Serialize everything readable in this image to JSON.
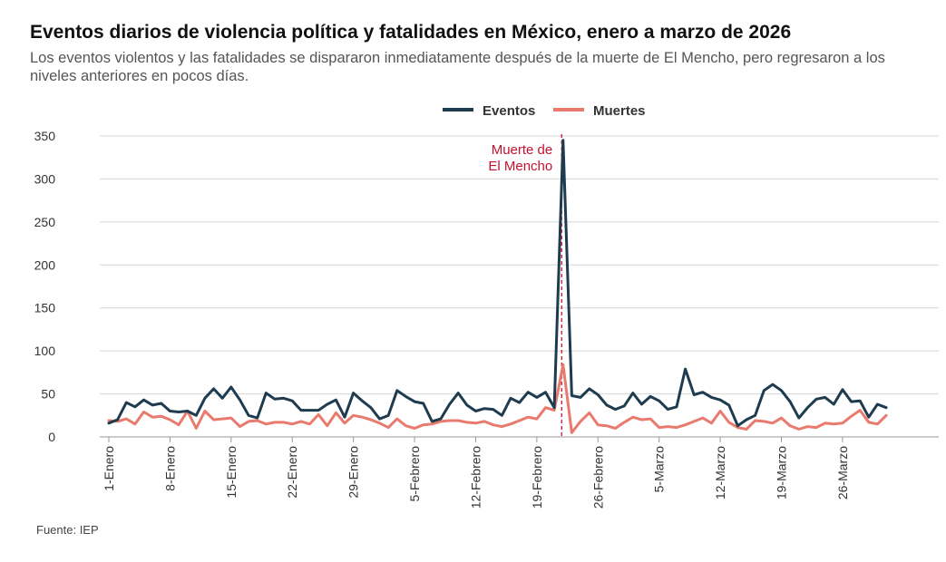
{
  "chart_data": {
    "type": "line",
    "title": "Eventos diarios de violencia política y fatalidades en México, enero a marzo de 2026",
    "subtitle": "Los eventos violentos y las fatalidades se dispararon inmediatamente después de la muerte de El Mencho, pero regresaron a los niveles anteriores en pocos días.",
    "source": "Fuente: IEP",
    "x_start": "2026-01-01",
    "x_tick_labels": [
      "1-Enero",
      "8-Enero",
      "15-Enero",
      "22-Enero",
      "29-Enero",
      "5-Febrero",
      "12-Febrero",
      "19-Febrero",
      "26-Febrero",
      "5-Marzo",
      "12-Marzo",
      "19-Marzo",
      "26-Marzo"
    ],
    "y_ticks": [
      0,
      50,
      100,
      150,
      200,
      250,
      300,
      350
    ],
    "ylim": [
      0,
      350
    ],
    "grid": true,
    "legend_position": "top-center",
    "annotation": {
      "date": "2026-02-22",
      "label_lines": [
        "Muerte de",
        "El Mencho"
      ],
      "color": "#c8102e"
    },
    "series": [
      {
        "name": "Eventos",
        "color": "#1e3b4f",
        "values": [
          16,
          20,
          40,
          35,
          43,
          37,
          39,
          30,
          29,
          30,
          25,
          45,
          56,
          45,
          58,
          43,
          25,
          22,
          51,
          44,
          45,
          42,
          31,
          31,
          31,
          38,
          43,
          23,
          51,
          42,
          34,
          21,
          25,
          54,
          47,
          41,
          39,
          18,
          21,
          38,
          51,
          37,
          30,
          33,
          32,
          25,
          45,
          40,
          52,
          46,
          52,
          34,
          345,
          48,
          46,
          56,
          49,
          37,
          32,
          36,
          51,
          38,
          47,
          42,
          32,
          35,
          79,
          49,
          52,
          46,
          43,
          37,
          13,
          20,
          25,
          54,
          61,
          54,
          41,
          22,
          34,
          44,
          46,
          38,
          55,
          41,
          42,
          23,
          38,
          34
        ]
      },
      {
        "name": "Muertes",
        "color": "#e97a6e",
        "values": [
          19,
          18,
          21,
          15,
          29,
          23,
          24,
          20,
          14,
          30,
          10,
          30,
          20,
          21,
          22,
          12,
          18,
          19,
          15,
          17,
          17,
          15,
          18,
          15,
          26,
          13,
          28,
          16,
          25,
          23,
          20,
          16,
          11,
          21,
          13,
          10,
          14,
          15,
          18,
          19,
          19,
          17,
          16,
          18,
          14,
          12,
          15,
          19,
          23,
          21,
          34,
          31,
          84,
          5,
          18,
          28,
          14,
          13,
          10,
          17,
          23,
          20,
          21,
          11,
          12,
          11,
          14,
          18,
          22,
          16,
          30,
          17,
          11,
          9,
          19,
          18,
          16,
          22,
          13,
          9,
          12,
          11,
          16,
          15,
          16,
          24,
          31,
          17,
          15,
          25
        ]
      }
    ]
  }
}
